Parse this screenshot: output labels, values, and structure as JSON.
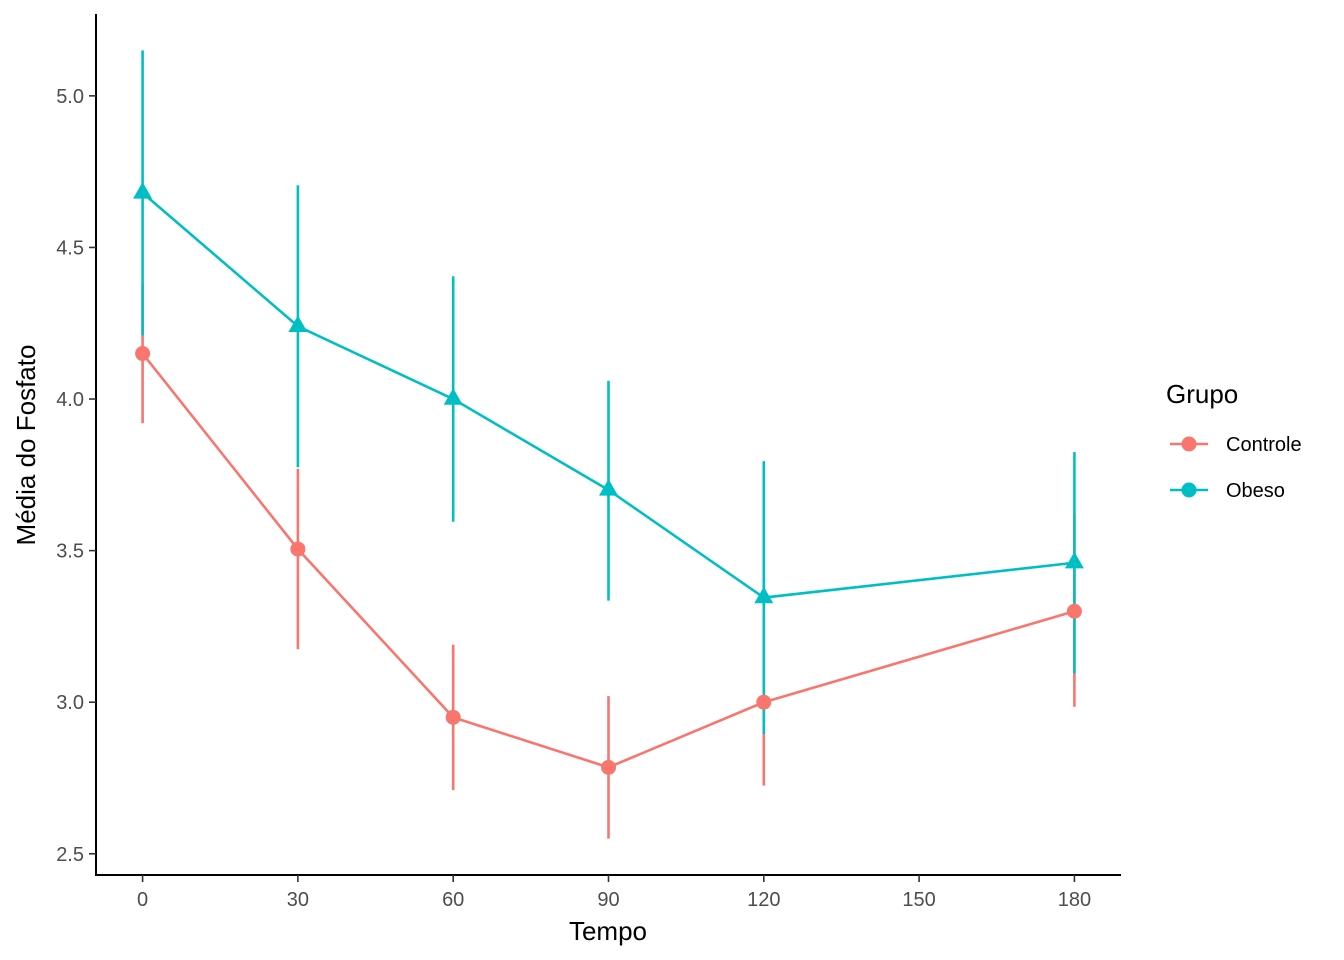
{
  "chart_data": {
    "type": "line",
    "title": "",
    "xlabel": "Tempo",
    "ylabel": "Média do Fosfato",
    "x_ticks": [
      0,
      30,
      60,
      90,
      120,
      150,
      180
    ],
    "y_ticks": [
      2.5,
      3.0,
      3.5,
      4.0,
      4.5,
      5.0
    ],
    "y_tick_labels": [
      "2.5",
      "3.0",
      "3.5",
      "4.0",
      "4.5",
      "5.0"
    ],
    "xlim": [
      -9,
      189
    ],
    "ylim": [
      2.43,
      5.27
    ],
    "grid": false,
    "legend": {
      "title": "Grupo",
      "placement": "right"
    },
    "series": [
      {
        "name": "Controle",
        "color": "#F8766D",
        "marker": "circle",
        "x": [
          0,
          30,
          60,
          90,
          120,
          180
        ],
        "y": [
          4.15,
          3.505,
          2.95,
          2.785,
          3.0,
          3.3
        ],
        "error_low": [
          3.92,
          3.175,
          2.71,
          2.55,
          2.725,
          2.985
        ],
        "error_high": [
          4.38,
          3.77,
          3.19,
          3.02,
          3.29,
          3.62
        ]
      },
      {
        "name": "Obeso",
        "color": "#00BFC4",
        "marker": "triangle",
        "x": [
          0,
          30,
          60,
          90,
          120,
          180
        ],
        "y": [
          4.68,
          4.24,
          4.0,
          3.7,
          3.345,
          3.46
        ],
        "error_low": [
          4.21,
          3.775,
          3.595,
          3.335,
          2.895,
          3.095
        ],
        "error_high": [
          5.15,
          4.705,
          4.405,
          4.06,
          3.795,
          3.825
        ]
      }
    ]
  }
}
